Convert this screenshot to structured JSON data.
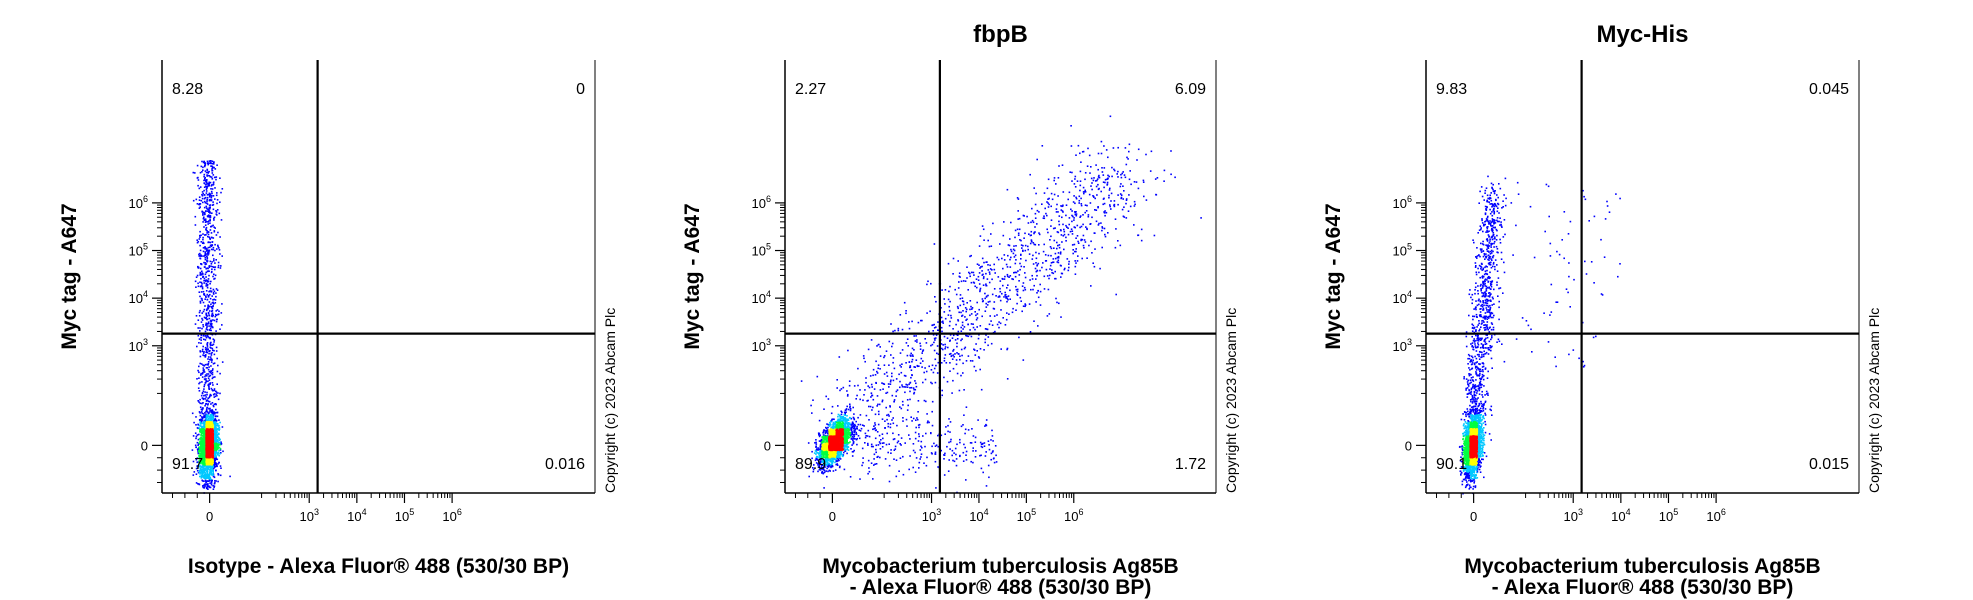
{
  "chart_data": [
    {
      "type": "scatter",
      "title": "",
      "xlabel": [
        "Isotype - Alexa Fluor® 488 (530/30 BP)"
      ],
      "ylabel": "Myc tag - A647",
      "x_scale": "biexponential",
      "y_scale": "biexponential",
      "x_tick_labels": [
        "0",
        "10",
        "10",
        "10",
        "10"
      ],
      "x_tick_exponents": [
        "",
        "3",
        "4",
        "5",
        "6"
      ],
      "y_tick_labels": [
        "0",
        "10",
        "10",
        "10",
        "10"
      ],
      "y_tick_exponents": [
        "",
        "3",
        "4",
        "5",
        "6"
      ],
      "gate_x": 1500,
      "gate_y": 1800,
      "quadrants": {
        "upper_left": "8.28",
        "upper_right": "0",
        "lower_left": "91.7",
        "lower_right": "0.016"
      },
      "copyright": "Copyright (c) 2023 Abcam Plc",
      "population": "isotype"
    },
    {
      "type": "scatter",
      "title": "fbpB",
      "xlabel": [
        "Mycobacterium tuberculosis Ag85B",
        "- Alexa Fluor® 488 (530/30 BP)"
      ],
      "ylabel": "Myc tag - A647",
      "x_scale": "biexponential",
      "y_scale": "biexponential",
      "x_tick_labels": [
        "0",
        "10",
        "10",
        "10",
        "10"
      ],
      "x_tick_exponents": [
        "",
        "3",
        "4",
        "5",
        "6"
      ],
      "y_tick_labels": [
        "0",
        "10",
        "10",
        "10",
        "10"
      ],
      "y_tick_exponents": [
        "",
        "3",
        "4",
        "5",
        "6"
      ],
      "gate_x": 1500,
      "gate_y": 1800,
      "quadrants": {
        "upper_left": "2.27",
        "upper_right": "6.09",
        "lower_left": "89.9",
        "lower_right": "1.72"
      },
      "copyright": "Copyright (c) 2023 Abcam Plc",
      "population": "diagonal"
    },
    {
      "type": "scatter",
      "title": "Myc-His",
      "xlabel": [
        "Mycobacterium tuberculosis Ag85B",
        "- Alexa Fluor® 488 (530/30 BP)"
      ],
      "ylabel": "Myc tag - A647",
      "x_scale": "biexponential",
      "y_scale": "biexponential",
      "x_tick_labels": [
        "0",
        "10",
        "10",
        "10",
        "10"
      ],
      "x_tick_exponents": [
        "",
        "3",
        "4",
        "5",
        "6"
      ],
      "y_tick_labels": [
        "0",
        "10",
        "10",
        "10",
        "10"
      ],
      "y_tick_exponents": [
        "",
        "3",
        "4",
        "5",
        "6"
      ],
      "gate_x": 1500,
      "gate_y": 1800,
      "quadrants": {
        "upper_left": "9.83",
        "upper_right": "0.045",
        "lower_left": "90.1",
        "lower_right": "0.015"
      },
      "copyright": "Copyright (c) 2023 Abcam Plc",
      "population": "tilted"
    }
  ],
  "colors": {
    "axis": "#000000",
    "density_low": "#0000ff",
    "density_mid": "#00c8ff",
    "density_midhigh": "#00ff40",
    "density_high": "#ffff00",
    "density_peak": "#ff0000"
  }
}
